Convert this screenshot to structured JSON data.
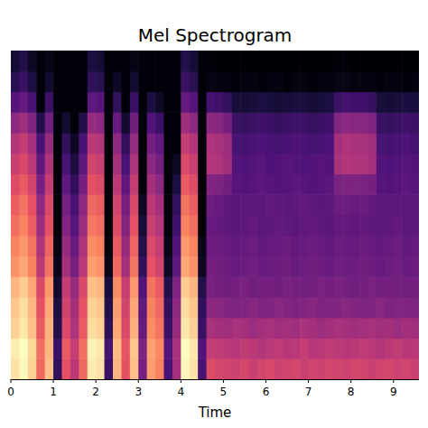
{
  "chart_data": {
    "type": "heatmap",
    "title": "Mel Spectrogram",
    "x_label": "Time",
    "xlim": [
      0,
      9.6
    ],
    "xticks": [
      0,
      1,
      2,
      3,
      4,
      5,
      6,
      7,
      8,
      9
    ],
    "tick_labels": "x",
    "cells": [
      [
        88,
        92,
        85,
        65,
        82,
        20,
        60,
        50,
        65,
        90,
        88,
        22,
        80,
        60,
        82,
        35,
        75,
        70,
        25,
        45,
        92,
        88,
        25,
        58,
        56,
        55,
        54,
        56,
        53,
        55,
        57,
        54,
        55,
        56,
        53,
        55,
        54,
        56,
        55,
        54,
        56,
        55,
        53,
        55,
        56,
        54,
        55,
        53
      ],
      [
        90,
        93,
        86,
        66,
        80,
        22,
        62,
        52,
        66,
        91,
        89,
        24,
        81,
        61,
        83,
        37,
        76,
        71,
        27,
        46,
        93,
        89,
        27,
        52,
        51,
        50,
        49,
        51,
        50,
        48,
        50,
        51,
        49,
        50,
        52,
        49,
        50,
        51,
        50,
        49,
        50,
        51,
        50,
        48,
        50,
        51,
        49,
        50
      ],
      [
        85,
        89,
        82,
        62,
        79,
        17,
        57,
        47,
        62,
        87,
        85,
        19,
        77,
        57,
        79,
        32,
        72,
        67,
        22,
        42,
        89,
        85,
        22,
        46,
        45,
        44,
        46,
        45,
        43,
        45,
        46,
        44,
        45,
        44,
        46,
        45,
        43,
        45,
        46,
        45,
        44,
        45,
        46,
        44,
        45,
        43,
        45,
        44
      ],
      [
        83,
        87,
        80,
        60,
        77,
        15,
        55,
        45,
        60,
        85,
        83,
        17,
        75,
        55,
        77,
        30,
        70,
        65,
        20,
        40,
        87,
        83,
        20,
        40,
        39,
        38,
        37,
        38,
        39,
        37,
        38,
        39,
        38,
        37,
        38,
        39,
        37,
        38,
        38,
        39,
        38,
        37,
        38,
        39,
        37,
        38,
        38,
        37
      ],
      [
        80,
        84,
        77,
        57,
        74,
        12,
        52,
        42,
        57,
        82,
        80,
        14,
        72,
        52,
        74,
        27,
        67,
        62,
        17,
        37,
        84,
        80,
        17,
        36,
        35,
        34,
        35,
        36,
        34,
        35,
        35,
        34,
        36,
        35,
        34,
        35,
        36,
        35,
        36,
        35,
        34,
        35,
        36,
        34,
        35,
        35,
        34,
        35
      ],
      [
        73,
        77,
        70,
        50,
        67,
        8,
        45,
        35,
        50,
        75,
        73,
        8,
        65,
        45,
        67,
        20,
        60,
        55,
        10,
        30,
        77,
        73,
        10,
        35,
        34,
        33,
        32,
        33,
        34,
        32,
        33,
        33,
        34,
        32,
        33,
        34,
        33,
        32,
        34,
        33,
        33,
        34,
        33,
        32,
        33,
        34,
        32,
        33
      ],
      [
        70,
        74,
        67,
        47,
        64,
        6,
        42,
        32,
        47,
        72,
        70,
        6,
        62,
        42,
        64,
        17,
        57,
        52,
        7,
        27,
        74,
        70,
        8,
        33,
        33,
        32,
        31,
        32,
        33,
        31,
        32,
        32,
        33,
        31,
        32,
        33,
        32,
        31,
        33,
        32,
        32,
        33,
        32,
        31,
        32,
        33,
        31,
        32
      ],
      [
        66,
        70,
        63,
        43,
        60,
        5,
        38,
        28,
        43,
        68,
        66,
        5,
        58,
        38,
        60,
        13,
        53,
        48,
        5,
        23,
        70,
        66,
        5,
        32,
        31,
        30,
        29,
        30,
        31,
        29,
        30,
        31,
        30,
        29,
        30,
        31,
        30,
        29,
        31,
        31,
        30,
        31,
        30,
        29,
        30,
        31,
        29,
        30
      ],
      [
        63,
        67,
        60,
        40,
        57,
        5,
        35,
        25,
        40,
        65,
        63,
        5,
        55,
        35,
        57,
        10,
        50,
        45,
        5,
        20,
        67,
        63,
        5,
        33,
        32,
        30,
        29,
        30,
        30,
        29,
        31,
        30,
        29,
        30,
        31,
        30,
        29,
        30,
        33,
        33,
        32,
        33,
        31,
        29,
        30,
        30,
        29,
        30
      ],
      [
        58,
        62,
        55,
        35,
        52,
        5,
        30,
        20,
        35,
        60,
        58,
        5,
        50,
        30,
        52,
        5,
        45,
        40,
        5,
        15,
        62,
        58,
        5,
        38,
        37,
        34,
        28,
        27,
        28,
        29,
        28,
        27,
        28,
        29,
        28,
        27,
        28,
        29,
        36,
        37,
        37,
        36,
        35,
        28,
        27,
        28,
        29,
        28
      ],
      [
        53,
        57,
        50,
        30,
        47,
        5,
        25,
        15,
        30,
        55,
        53,
        5,
        45,
        25,
        47,
        5,
        40,
        35,
        5,
        10,
        57,
        53,
        5,
        48,
        47,
        44,
        27,
        26,
        27,
        28,
        26,
        27,
        28,
        27,
        26,
        27,
        28,
        27,
        46,
        48,
        47,
        47,
        45,
        27,
        26,
        27,
        28,
        27
      ],
      [
        48,
        52,
        45,
        25,
        42,
        5,
        20,
        10,
        25,
        50,
        48,
        5,
        40,
        20,
        42,
        5,
        35,
        30,
        5,
        5,
        52,
        48,
        5,
        47,
        46,
        43,
        25,
        24,
        25,
        26,
        25,
        24,
        25,
        26,
        25,
        24,
        25,
        26,
        45,
        47,
        46,
        46,
        44,
        25,
        24,
        25,
        26,
        24
      ],
      [
        40,
        44,
        37,
        17,
        34,
        5,
        12,
        5,
        17,
        42,
        40,
        5,
        32,
        12,
        34,
        5,
        27,
        22,
        5,
        5,
        44,
        40,
        5,
        40,
        39,
        35,
        22,
        21,
        22,
        23,
        22,
        21,
        22,
        23,
        22,
        21,
        22,
        23,
        38,
        40,
        39,
        39,
        37,
        22,
        21,
        22,
        23,
        22
      ],
      [
        28,
        32,
        25,
        5,
        22,
        5,
        5,
        5,
        5,
        30,
        28,
        5,
        20,
        5,
        22,
        5,
        15,
        10,
        5,
        5,
        32,
        28,
        5,
        24,
        23,
        20,
        14,
        13,
        14,
        15,
        14,
        13,
        14,
        15,
        14,
        13,
        14,
        15,
        22,
        24,
        23,
        23,
        21,
        14,
        13,
        14,
        15,
        14
      ],
      [
        18,
        22,
        15,
        5,
        12,
        5,
        5,
        5,
        5,
        20,
        18,
        5,
        10,
        5,
        12,
        5,
        5,
        5,
        5,
        5,
        22,
        18,
        5,
        7,
        6,
        6,
        5,
        6,
        6,
        5,
        6,
        6,
        5,
        6,
        6,
        5,
        6,
        6,
        7,
        7,
        6,
        6,
        6,
        5,
        6,
        6,
        5,
        6
      ],
      [
        13,
        17,
        10,
        5,
        7,
        5,
        5,
        5,
        5,
        15,
        13,
        5,
        5,
        5,
        7,
        5,
        5,
        5,
        5,
        5,
        17,
        13,
        5,
        5,
        4,
        4,
        4,
        4,
        4,
        4,
        4,
        4,
        4,
        4,
        4,
        4,
        4,
        4,
        5,
        5,
        4,
        4,
        4,
        4,
        4,
        4,
        4,
        4
      ]
    ]
  }
}
